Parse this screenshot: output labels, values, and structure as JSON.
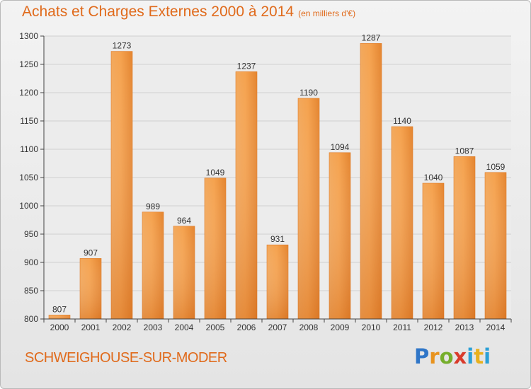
{
  "title": "Achats et Charges Externes 2000 à 2014",
  "subtitle": "(en milliers d'€)",
  "city": "SCHWEIGHOUSE-SUR-MODER",
  "logo": "Proxiti",
  "colors": {
    "title": "#e06a1b",
    "bar_light": "#f6a24f",
    "bar_dark": "#dc7120",
    "grid": "#cfcfcf",
    "axis": "#444444"
  },
  "chart_data": {
    "type": "bar",
    "title": "Achats et Charges Externes 2000 à 2014",
    "xlabel": "",
    "ylabel": "",
    "categories": [
      "2000",
      "2001",
      "2002",
      "2003",
      "2004",
      "2005",
      "2006",
      "2007",
      "2008",
      "2009",
      "2010",
      "2011",
      "2012",
      "2013",
      "2014"
    ],
    "values": [
      807,
      907,
      1273,
      989,
      964,
      1049,
      1237,
      931,
      1190,
      1094,
      1287,
      1140,
      1040,
      1087,
      1059
    ],
    "ylim": [
      800,
      1300
    ],
    "yticks": [
      800,
      850,
      900,
      950,
      1000,
      1050,
      1100,
      1150,
      1200,
      1250,
      1300
    ],
    "grid": true
  }
}
